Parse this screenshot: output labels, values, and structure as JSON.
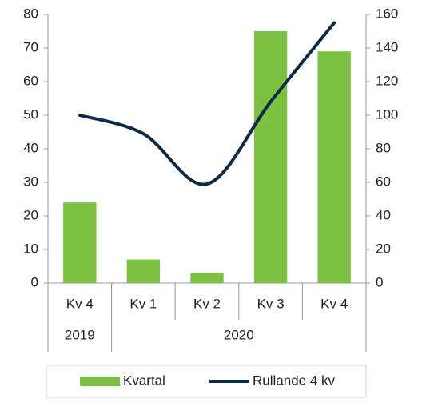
{
  "chart_data": {
    "type": "bar",
    "categories": [
      "Kv 4",
      "Kv 1",
      "Kv 2",
      "Kv 3",
      "Kv 4"
    ],
    "groups": [
      {
        "label": "2019",
        "span": 1
      },
      {
        "label": "2020",
        "span": 4
      }
    ],
    "series": [
      {
        "name": "Kvartal",
        "color": "#7dc142",
        "type": "bar",
        "values": [
          24,
          7,
          3,
          75,
          69
        ]
      },
      {
        "name": "Rullande 4 kv",
        "color": "#0d2a45",
        "type": "line",
        "axis": "y2",
        "values": [
          100,
          89,
          59,
          108,
          155
        ]
      }
    ],
    "ylim": [
      0,
      80
    ],
    "yticks": [
      0,
      10,
      20,
      30,
      40,
      50,
      60,
      70,
      80
    ],
    "y2lim": [
      0,
      160
    ],
    "y2ticks": [
      0,
      20,
      40,
      60,
      80,
      100,
      120,
      140,
      160
    ],
    "legend": "bottom"
  }
}
